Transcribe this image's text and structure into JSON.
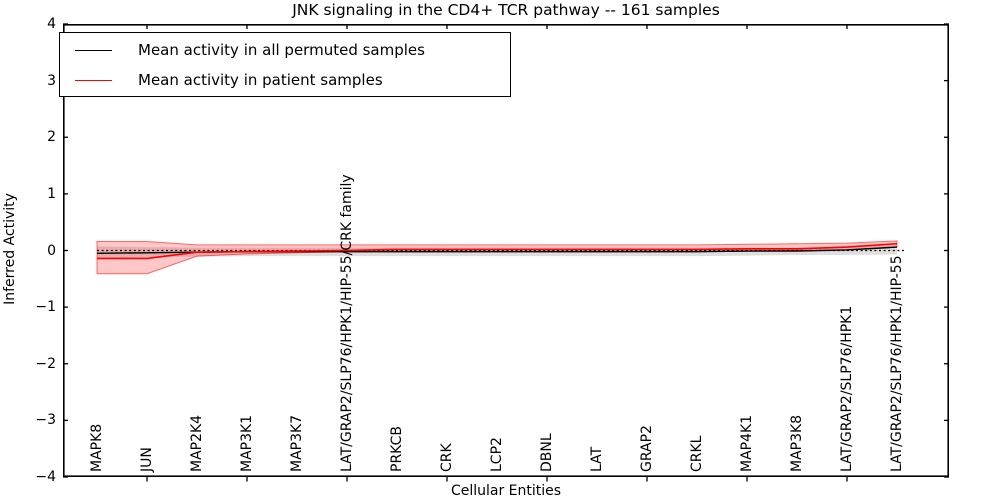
{
  "chart_data": {
    "type": "line",
    "title": "JNK signaling in the CD4+ TCR pathway -- 161 samples",
    "xlabel": "Cellular Entities",
    "ylabel": "Inferred Activity",
    "ylim": [
      -4,
      4
    ],
    "y_ticks": [
      4,
      3,
      2,
      1,
      0,
      -1,
      -2,
      -3,
      -4
    ],
    "y_tick_labels": [
      "4",
      "3",
      "2",
      "1",
      "0",
      "−1",
      "−2",
      "−3",
      "−4"
    ],
    "grid": false,
    "legend_position": "upper-left",
    "categories": [
      "MAPK8",
      "JUN",
      "MAP2K4",
      "MAP3K1",
      "MAP3K7",
      "LAT/GRAP2/SLP76/HPK1/HIP-55/CRK family",
      "PRKCB",
      "CRK",
      "LCP2",
      "DBNL",
      "LAT",
      "GRAP2",
      "CRKL",
      "MAP4K1",
      "MAP3K8",
      "LAT/GRAP2/SLP76/HPK1",
      "LAT/GRAP2/SLP76/HPK1/HIP-55"
    ],
    "x_tick_indices": [
      1,
      3,
      5,
      7,
      9,
      11,
      13,
      15
    ],
    "zero_line_value": 0,
    "series": [
      {
        "name": "Mean activity in all permuted samples",
        "color": "#000000",
        "band_color": "rgba(0,0,0,0.13)",
        "band_edge_color": "rgba(0,0,0,0)",
        "values": [
          -0.05,
          -0.04,
          -0.03,
          -0.02,
          -0.02,
          -0.02,
          -0.02,
          -0.02,
          -0.02,
          -0.02,
          -0.02,
          -0.02,
          -0.02,
          -0.01,
          -0.01,
          0.01,
          0.06
        ],
        "band_upper": [
          0.07,
          0.06,
          0.05,
          0.05,
          0.05,
          0.05,
          0.05,
          0.05,
          0.05,
          0.05,
          0.05,
          0.05,
          0.05,
          0.05,
          0.05,
          0.06,
          0.1
        ],
        "band_lower": [
          -0.13,
          -0.12,
          -0.11,
          -0.1,
          -0.1,
          -0.1,
          -0.1,
          -0.1,
          -0.1,
          -0.1,
          -0.1,
          -0.1,
          -0.1,
          -0.09,
          -0.08,
          -0.08,
          -0.07
        ]
      },
      {
        "name": "Mean activity in patient samples",
        "color": "#ff0000",
        "band_color": "rgba(255,0,0,0.22)",
        "band_edge_color": "rgba(255,0,0,0.55)",
        "values": [
          -0.14,
          -0.14,
          -0.03,
          -0.02,
          -0.01,
          0.0,
          0.02,
          0.02,
          0.02,
          0.02,
          0.02,
          0.02,
          0.02,
          0.03,
          0.03,
          0.06,
          0.12
        ],
        "band_upper": [
          0.16,
          0.16,
          0.1,
          0.1,
          0.1,
          0.1,
          0.1,
          0.1,
          0.1,
          0.1,
          0.1,
          0.1,
          0.1,
          0.11,
          0.12,
          0.13,
          0.17
        ],
        "band_lower": [
          -0.41,
          -0.41,
          -0.1,
          -0.06,
          -0.04,
          -0.02,
          -0.02,
          -0.02,
          -0.02,
          -0.02,
          -0.02,
          -0.02,
          -0.02,
          -0.01,
          0.0,
          0.01,
          0.06
        ]
      }
    ],
    "legend": {
      "entries": [
        {
          "label": "Mean activity in all permuted samples",
          "color": "#000000"
        },
        {
          "label": "Mean activity in patient samples",
          "color": "#ff0000"
        }
      ]
    }
  }
}
